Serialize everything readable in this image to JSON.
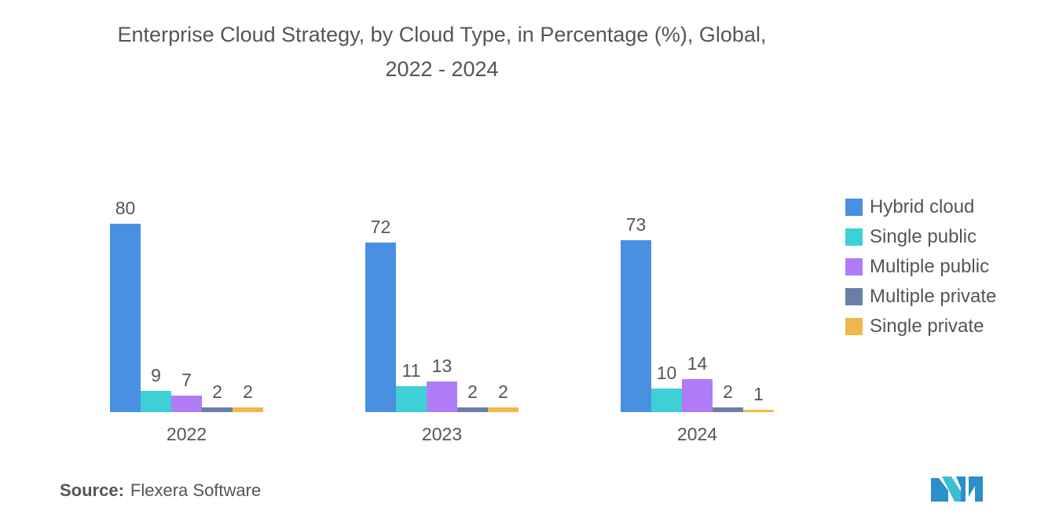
{
  "title": {
    "line1": "Enterprise Cloud Strategy, by Cloud Type, in Percentage (%), Global,",
    "line2": "2022 - 2024"
  },
  "chart_data": {
    "type": "bar",
    "title": "Enterprise Cloud Strategy, by Cloud Type, in Percentage (%), Global, 2022 - 2024",
    "xlabel": "",
    "ylabel": "",
    "categories": [
      "2022",
      "2023",
      "2024"
    ],
    "ylim": [
      0,
      80
    ],
    "series": [
      {
        "name": "Hybrid cloud",
        "color": "#4a90e2",
        "values": [
          80,
          72,
          73
        ]
      },
      {
        "name": "Single public",
        "color": "#3dd0d6",
        "values": [
          9,
          11,
          10
        ]
      },
      {
        "name": "Multiple public",
        "color": "#b07cf5",
        "values": [
          7,
          13,
          14
        ]
      },
      {
        "name": "Multiple private",
        "color": "#6b7fa5",
        "values": [
          2,
          2,
          2
        ]
      },
      {
        "name": "Single private",
        "color": "#efb84a",
        "values": [
          2,
          2,
          1
        ]
      }
    ],
    "legend_position": "right"
  },
  "source": {
    "label": "Source:",
    "text": "Flexera Software"
  },
  "logo": {
    "icon": "mordor-intelligence-logo-icon",
    "color": "#2b8fc9"
  }
}
